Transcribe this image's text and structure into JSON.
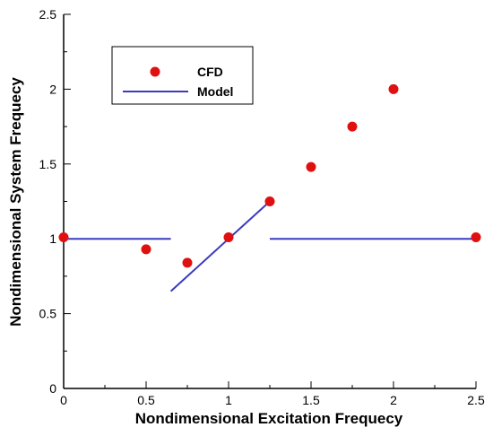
{
  "chart_data": {
    "type": "scatter",
    "title": "",
    "xlabel": "Nondimensional Excitation Frequecy",
    "ylabel": "Nondimensional System Frequecy",
    "xlim": [
      0,
      2.5
    ],
    "ylim": [
      0,
      2.5
    ],
    "xticks": [
      "0",
      "0.5",
      "1",
      "1.5",
      "2",
      "2.5"
    ],
    "yticks": [
      "0",
      "0.5",
      "1",
      "1.5",
      "2",
      "2.5"
    ],
    "grid": false,
    "legend_position": "top-left",
    "series": [
      {
        "name": "CFD",
        "kind": "points",
        "color": "#e01010",
        "points": [
          {
            "x": 0,
            "y": 1.01
          },
          {
            "x": 0.5,
            "y": 0.93
          },
          {
            "x": 0.75,
            "y": 0.84
          },
          {
            "x": 1.0,
            "y": 1.01
          },
          {
            "x": 1.25,
            "y": 1.25
          },
          {
            "x": 1.5,
            "y": 1.48
          },
          {
            "x": 1.75,
            "y": 1.75
          },
          {
            "x": 2.0,
            "y": 2.0
          },
          {
            "x": 2.5,
            "y": 1.01
          }
        ]
      },
      {
        "name": "Model",
        "kind": "lines",
        "color": "#3a3ac0",
        "segments": [
          [
            {
              "x": 0,
              "y": 1.0
            },
            {
              "x": 0.65,
              "y": 1.0
            }
          ],
          [
            {
              "x": 0.65,
              "y": 0.65
            },
            {
              "x": 1.25,
              "y": 1.25
            }
          ],
          [
            {
              "x": 1.25,
              "y": 1.0
            },
            {
              "x": 2.5,
              "y": 1.0
            }
          ]
        ]
      }
    ]
  }
}
